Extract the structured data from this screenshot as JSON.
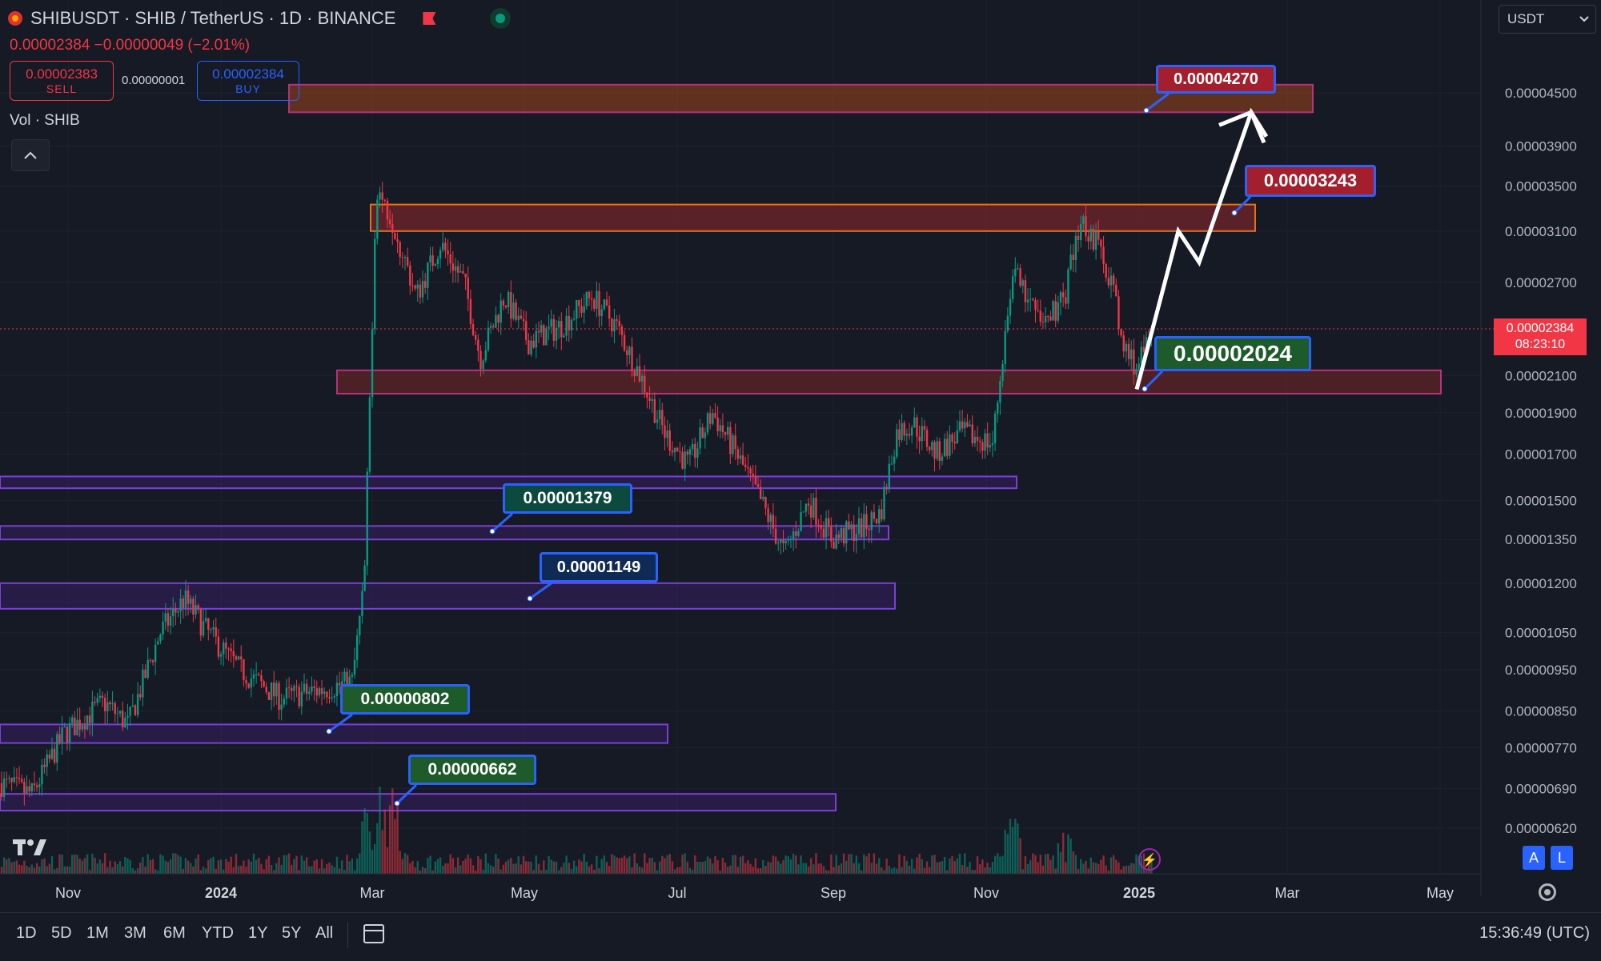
{
  "header": {
    "symbol_line": "SHIBUSDT · SHIB / TetherUS · 1D · BINANCE",
    "change_line": "0.00002384  −0.00000049 (−2.01%)",
    "sell_price": "0.00002383",
    "sell_label": "SELL",
    "spread": "0.00000001",
    "buy_price": "0.00002384",
    "buy_label": "BUY",
    "volume_label": "Vol · SHIB",
    "currency": "USDT"
  },
  "price_axis": {
    "ticks": [
      "0.00004500",
      "0.00003900",
      "0.00003500",
      "0.00003100",
      "0.00002700",
      "0.00002100",
      "0.00001900",
      "0.00001700",
      "0.00001500",
      "0.00001350",
      "0.00001200",
      "0.00001050",
      "0.00000950",
      "0.00000850",
      "0.00000770",
      "0.00000690",
      "0.00000620"
    ],
    "current_price": "0.00002384",
    "countdown": "08:23:10"
  },
  "time_axis": {
    "ticks": [
      "Nov",
      "2024",
      "Mar",
      "May",
      "Jul",
      "Sep",
      "Nov",
      "2025",
      "Mar",
      "May"
    ]
  },
  "annotations": [
    {
      "text": "0.00004270",
      "color": "red"
    },
    {
      "text": "0.00003243",
      "color": "red"
    },
    {
      "text": "0.00002024",
      "color": "green"
    },
    {
      "text": "0.00001379",
      "color": "teal"
    },
    {
      "text": "0.00001149",
      "color": "blue"
    },
    {
      "text": "0.00000802",
      "color": "green"
    },
    {
      "text": "0.00000662",
      "color": "green"
    }
  ],
  "bottom_bar": {
    "timeframes": [
      "1D",
      "5D",
      "1M",
      "3M",
      "6M",
      "YTD",
      "1Y",
      "5Y",
      "All"
    ],
    "clock": "15:36:49 (UTC)"
  },
  "badges": {
    "a": "A",
    "l": "L"
  },
  "colors": {
    "up": "#089981",
    "down": "#f23645",
    "accent": "#2962ff",
    "zone_orange": "#e8701a",
    "zone_purple": "#7b3fd6"
  },
  "chart_data": {
    "type": "candlestick",
    "symbol": "SHIBUSDT",
    "ylim": [
      5.8e-06,
      4.8e-05
    ],
    "price_levels_shown": [
      4.27e-05,
      3.243e-05,
      2.024e-05,
      1.379e-05,
      1.149e-05,
      8.02e-06,
      6.62e-06
    ],
    "projection_path": [
      [
        2.024e-05
      ],
      [
        3.1e-05
      ],
      [
        2.85e-05
      ],
      [
        4.27e-05
      ],
      [
        4e-05
      ]
    ]
  }
}
